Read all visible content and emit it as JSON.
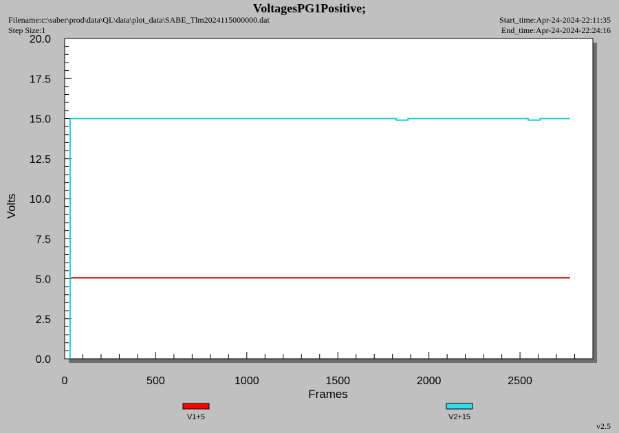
{
  "header": {
    "title": "VoltagesPG1Positive;",
    "filename_label": "Filename:",
    "filename_value": "c:\\saber\\prod\\data\\QL\\data\\plot_data\\SABE_Tlm2024115000000.dat",
    "step_label": "Step Size:",
    "step_value": "1",
    "start_label": "Start_time:",
    "start_value": "Apr-24-2024-22:11:35",
    "end_label": "End_time:",
    "end_value": "Apr-24-2024-22:24:16"
  },
  "version": "v2.5",
  "chart_data": {
    "type": "line",
    "title": "VoltagesPG1Positive;",
    "xlabel": "Frames",
    "ylabel": "Volts",
    "xlim": [
      0,
      2900
    ],
    "ylim": [
      0,
      20
    ],
    "x_ticks": [
      0,
      500,
      1000,
      1500,
      2000,
      2500
    ],
    "x_tick_labels": [
      "0",
      "500",
      "1000",
      "1500",
      "2000",
      "2500"
    ],
    "y_ticks": [
      0,
      2.5,
      5,
      7.5,
      10,
      12.5,
      15,
      17.5,
      20
    ],
    "y_tick_labels": [
      "0.0",
      "2.5",
      "5.0",
      "7.5",
      "10.0",
      "12.5",
      "15.0",
      "17.5",
      "20.0"
    ],
    "legend_position": "bottom",
    "grid": false,
    "series": [
      {
        "name": "V1+5",
        "color": "#ff0000",
        "line_color": "#cc0000",
        "points": [
          [
            36,
            5.05
          ],
          [
            2775,
            5.05
          ]
        ]
      },
      {
        "name": "V2+15",
        "color": "#33ddee",
        "line_color": "#22ccdd",
        "points": [
          [
            30,
            0
          ],
          [
            30,
            15.0
          ],
          [
            1820,
            15.0
          ],
          [
            1820,
            14.9
          ],
          [
            1885,
            14.9
          ],
          [
            1885,
            15.0
          ],
          [
            2545,
            15.0
          ],
          [
            2545,
            14.9
          ],
          [
            2610,
            14.9
          ],
          [
            2610,
            15.0
          ],
          [
            2775,
            15.0
          ]
        ]
      }
    ]
  }
}
